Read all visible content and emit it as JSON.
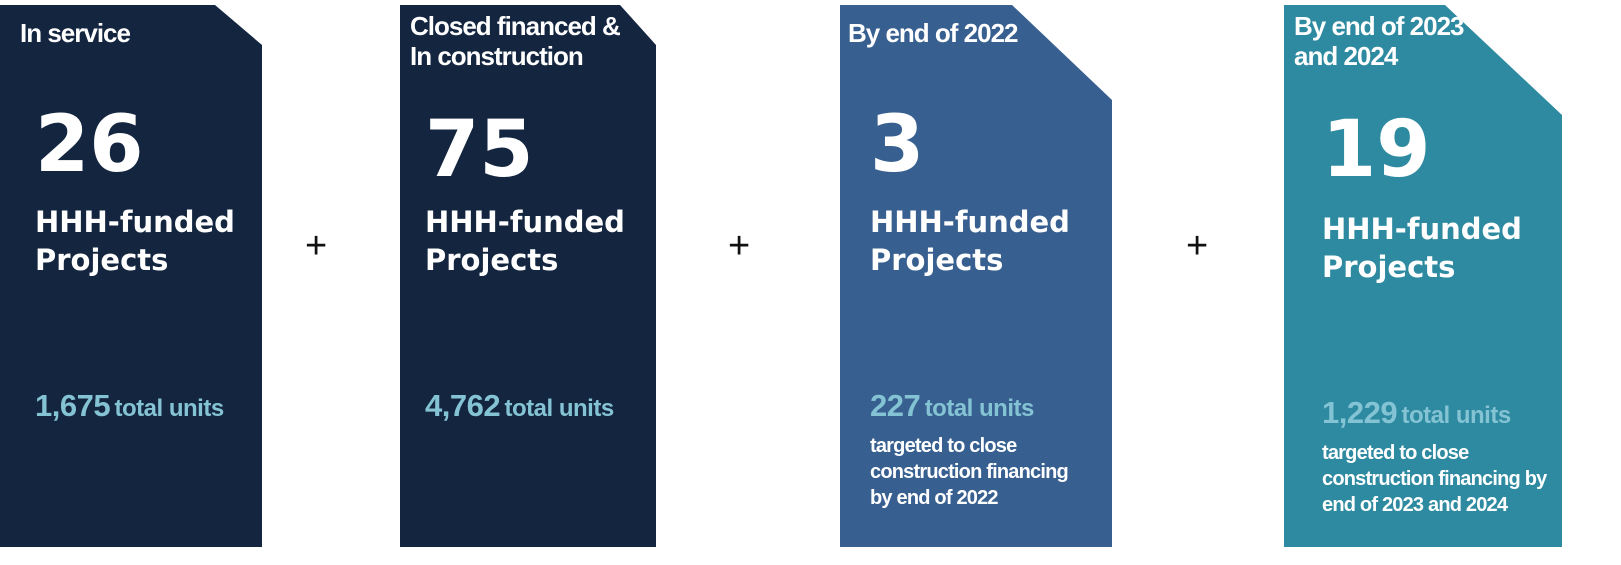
{
  "cards": [
    {
      "header": "In service",
      "count": "26",
      "label": "HHH-funded Projects",
      "units": "1,675",
      "units_label": "total units"
    },
    {
      "header": "Closed financed & In construction",
      "count": "75",
      "label": "HHH-funded Projects",
      "units": "4,762",
      "units_label": "total units"
    },
    {
      "header": "By end of 2022",
      "count": "3",
      "label": "HHH-funded Projects",
      "units": "227",
      "units_label": "total units",
      "note": "targeted to close construction financing by end of 2022"
    },
    {
      "header": "By end of 2023 and 2024",
      "count": "19",
      "label": "HHH-funded Projects",
      "units": "1,229",
      "units_label": "total units",
      "note": "targeted to close construction financing by end of 2023 and 2024"
    }
  ],
  "separators": [
    "+",
    "+",
    "+"
  ]
}
